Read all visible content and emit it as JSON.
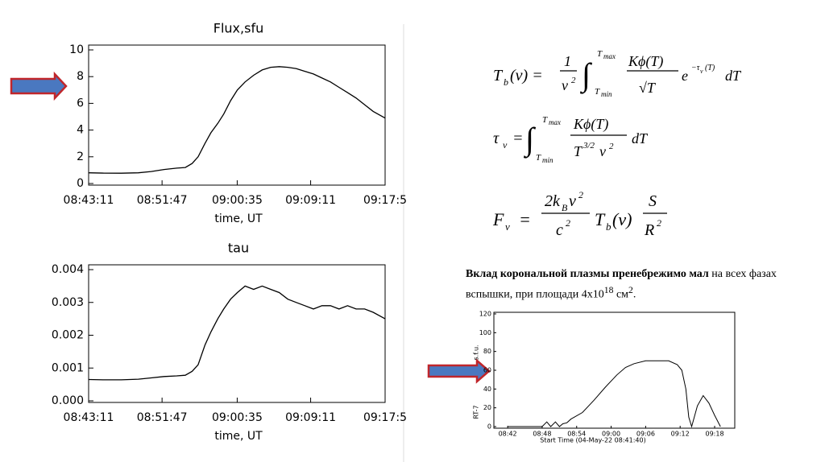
{
  "chart_data": [
    {
      "type": "line",
      "title": "Flux,sfu",
      "xlabel": "time, UT",
      "color": "#000000",
      "x": [
        523.18,
        525,
        527,
        529,
        530.5,
        532,
        533.5,
        534.5,
        535.3,
        536,
        536.8,
        537.5,
        538.3,
        539,
        539.8,
        540.6,
        541.5,
        542.5,
        543.5,
        544.5,
        545.5,
        546.5,
        547.5,
        548.5,
        549.5,
        550.5,
        551.5,
        552.5,
        553.5,
        554.5,
        555.5,
        556.5,
        557.9
      ],
      "values": [
        0.8,
        0.78,
        0.77,
        0.8,
        0.9,
        1.05,
        1.15,
        1.2,
        1.5,
        2.0,
        3.0,
        3.8,
        4.5,
        5.2,
        6.2,
        7.0,
        7.6,
        8.1,
        8.5,
        8.7,
        8.75,
        8.7,
        8.6,
        8.4,
        8.2,
        7.9,
        7.6,
        7.2,
        6.8,
        6.4,
        5.9,
        5.4,
        4.9
      ],
      "xlim": [
        523.18,
        557.9
      ],
      "xticks": [
        {
          "value": 523.18,
          "label": "08:43:11"
        },
        {
          "value": 531.78,
          "label": "08:51:47"
        },
        {
          "value": 540.58,
          "label": "09:00:35"
        },
        {
          "value": 549.18,
          "label": "09:09:11"
        },
        {
          "value": 557.9,
          "label": "09:17:5"
        }
      ],
      "ylim": [
        0,
        10
      ],
      "yticks": [
        0,
        2,
        4,
        6,
        8,
        10
      ]
    },
    {
      "type": "line",
      "title": "tau",
      "xlabel": "time, UT",
      "color": "#000000",
      "x": [
        523.18,
        525,
        527,
        529,
        530.5,
        532,
        533.5,
        534.5,
        535.3,
        536,
        536.8,
        537.5,
        538.3,
        539,
        539.8,
        540.6,
        541.5,
        542.5,
        543.5,
        544.5,
        545.5,
        546.5,
        547.5,
        548.5,
        549.5,
        550.5,
        551.5,
        552.5,
        553.5,
        554.5,
        555.5,
        556.5,
        557.9
      ],
      "values": [
        0.00065,
        0.00064,
        0.00064,
        0.00066,
        0.0007,
        0.00074,
        0.00076,
        0.00078,
        0.0009,
        0.0011,
        0.0017,
        0.0021,
        0.0025,
        0.0028,
        0.0031,
        0.0033,
        0.0035,
        0.0034,
        0.0035,
        0.0034,
        0.0033,
        0.0031,
        0.003,
        0.0029,
        0.0028,
        0.0029,
        0.0029,
        0.0028,
        0.0029,
        0.0028,
        0.0028,
        0.0027,
        0.0025
      ],
      "xlim": [
        523.18,
        557.9
      ],
      "xticks": [
        {
          "value": 523.18,
          "label": "08:43:11"
        },
        {
          "value": 531.78,
          "label": "08:51:47"
        },
        {
          "value": 540.58,
          "label": "09:00:35"
        },
        {
          "value": 549.18,
          "label": "09:09:11"
        },
        {
          "value": 557.9,
          "label": "09:17:5"
        }
      ],
      "ylim": [
        0,
        0.004
      ],
      "yticks": [
        {
          "value": 0,
          "label": "0.000"
        },
        0.001,
        0.002,
        0.003,
        0.004
      ]
    },
    {
      "type": "line",
      "xlabel": "Start Time (04-May-22 08:41:40)",
      "ylabel": "RT-7",
      "yunit": "s.f.u.",
      "color": "#000000",
      "x": [
        522,
        528,
        528.8,
        529.5,
        530.3,
        531,
        531.6,
        532.3,
        533,
        535,
        537,
        539,
        541,
        542.5,
        544,
        546,
        548,
        550,
        551.5,
        552.3,
        553,
        553.5,
        554,
        555,
        556,
        557,
        558,
        559
      ],
      "values": [
        0,
        0,
        5,
        0,
        5,
        0,
        3,
        4,
        8,
        15,
        28,
        42,
        55,
        63,
        67,
        70,
        70,
        70,
        66,
        60,
        40,
        10,
        0,
        22,
        33,
        25,
        12,
        0
      ],
      "xlim": [
        519.6,
        561.5
      ],
      "xticks": [
        {
          "value": 522,
          "label": "08:42"
        },
        {
          "value": 528,
          "label": "08:48"
        },
        {
          "value": 534,
          "label": "08:54"
        },
        {
          "value": 540,
          "label": "09:00"
        },
        {
          "value": 546,
          "label": "09:06"
        },
        {
          "value": 552,
          "label": "09:12"
        },
        {
          "value": 558,
          "label": "09:18"
        }
      ],
      "ylim": [
        0,
        120
      ],
      "yticks": [
        0,
        20,
        40,
        60,
        80,
        100,
        120
      ]
    }
  ],
  "formulas": [
    [
      "T",
      "b",
      "(ν) =",
      "1",
      "ν",
      "2",
      "∫",
      "T",
      "max",
      "T",
      "min",
      "Kϕ(T)",
      "√T",
      "e",
      "−τ",
      "ν",
      "(T)",
      "dT"
    ],
    [
      "τ",
      "ν",
      "=",
      "∫",
      "T",
      "max",
      "T",
      "min",
      "Kϕ(T)",
      "T",
      "3/2",
      "ν",
      "2",
      "dT"
    ],
    [
      "F",
      "ν",
      "=",
      "2k",
      "B",
      "ν",
      "2",
      "c",
      "2",
      "T",
      "b",
      "(ν)",
      "S",
      "R",
      "2"
    ]
  ],
  "caption": {
    "bold": "Вклад корональной плазмы пренебрежимо мал",
    "text": "на всех фазах вспышки, при площади 4x10",
    "sup1": "18",
    "unit": "см",
    "sup2": "2",
    "end": "."
  }
}
